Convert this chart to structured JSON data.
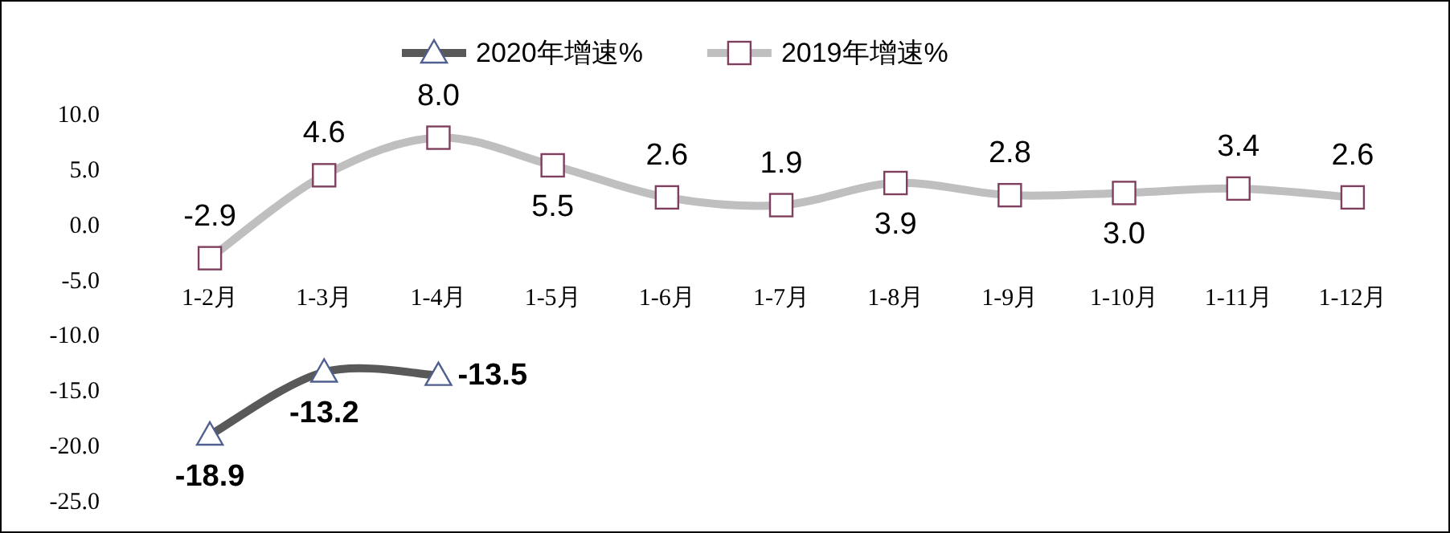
{
  "chart_data": {
    "type": "line",
    "categories": [
      "1-2月",
      "1-3月",
      "1-4月",
      "1-5月",
      "1-6月",
      "1-7月",
      "1-8月",
      "1-9月",
      "1-10月",
      "1-11月",
      "1-12月"
    ],
    "series": [
      {
        "name": "2020年增速%",
        "color": "#595959",
        "marker": "triangle",
        "values": [
          -18.9,
          -13.2,
          -13.5,
          null,
          null,
          null,
          null,
          null,
          null,
          null,
          null
        ],
        "value_labels": [
          "-18.9",
          "-13.2",
          "-13.5",
          null,
          null,
          null,
          null,
          null,
          null,
          null,
          null
        ]
      },
      {
        "name": "2019年增速%",
        "color": "#bfbfbf",
        "marker": "square",
        "values": [
          -2.9,
          4.6,
          8.0,
          5.5,
          2.6,
          1.9,
          3.9,
          2.8,
          3.0,
          3.4,
          2.6
        ],
        "value_labels": [
          "-2.9",
          "4.6",
          "8.0",
          "5.5",
          "2.6",
          "1.9",
          "3.9",
          "2.8",
          "3.0",
          "3.4",
          "2.6"
        ]
      }
    ],
    "ylim": [
      -25,
      10
    ],
    "yticks": [
      {
        "value": -25,
        "label": "-25.0"
      },
      {
        "value": -20,
        "label": "-20.0"
      },
      {
        "value": -15,
        "label": "-15.0"
      },
      {
        "value": -10,
        "label": "-10.0"
      },
      {
        "value": -5,
        "label": "-5.0"
      },
      {
        "value": 0,
        "label": "0.0"
      },
      {
        "value": 5,
        "label": "5.0"
      },
      {
        "value": 10,
        "label": "10.0"
      }
    ],
    "legend": "top",
    "grid": false
  }
}
